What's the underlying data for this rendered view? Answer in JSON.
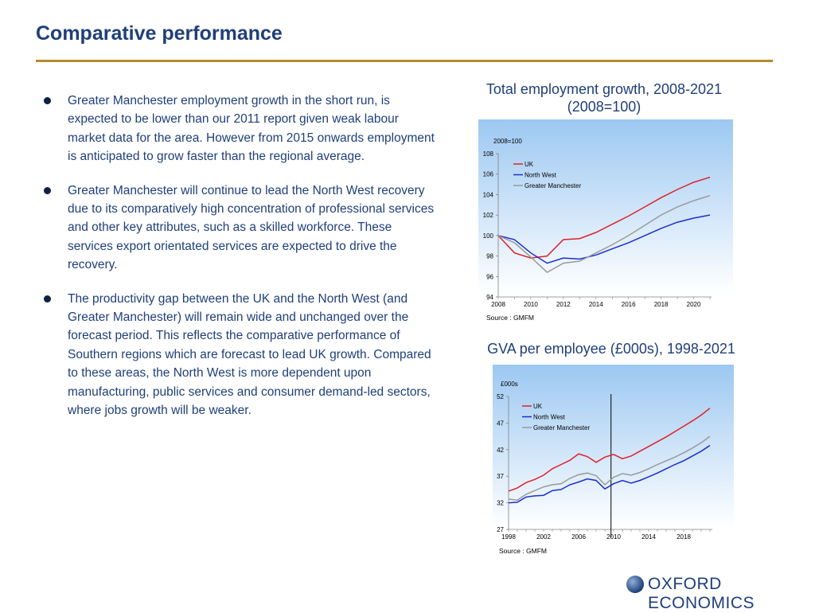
{
  "page": {
    "title": "Comparative performance",
    "bullets": [
      "Greater Manchester employment growth in the short run, is expected to be lower than our 2011 report given weak labour market data for the area. However from 2015 onwards employment is anticipated to grow faster than the regional average.",
      "Greater Manchester will continue to lead the North West recovery due to its comparatively high  concentration of professional services and  other key attributes, such as a skilled workforce.  These services export orientated services are expected to drive the recovery.",
      "The productivity gap between the UK and the North West (and Greater Manchester) will remain wide and unchanged over the forecast period.  This reflects the comparative performance of Southern regions which are forecast to lead UK growth. Compared to these areas, the North West is more dependent upon manufacturing, public services and consumer demand-led sectors,  where jobs growth will  be weaker."
    ],
    "logo_text": "OXFORD ECONOMICS"
  },
  "colors": {
    "uk": "#e0202a",
    "north_west": "#1a2fd0",
    "greater_manchester": "#9a9a9a",
    "title": "#1f3f7a",
    "rule": "#b08d2e"
  },
  "chart_data": [
    {
      "type": "line",
      "title": "Total employment growth, 2008-2021 (2008=100)",
      "title_line1": "Total employment growth, 2008-2021",
      "title_line2": "(2008=100)",
      "unit_label": "2008=100",
      "source": "Source : GMFM",
      "ylim": [
        94,
        108
      ],
      "yticks": [
        "94",
        "96",
        "98",
        "100",
        "102",
        "104",
        "106",
        "108"
      ],
      "xticks": [
        "2008",
        "2010",
        "2012",
        "2014",
        "2016",
        "2018",
        "2020"
      ],
      "x": [
        2008,
        2009,
        2010,
        2011,
        2012,
        2013,
        2014,
        2015,
        2016,
        2017,
        2018,
        2019,
        2020,
        2021
      ],
      "legend_position": "top-left",
      "series": [
        {
          "name": "UK",
          "color": "#e0202a",
          "values": [
            100,
            98.3,
            97.8,
            98,
            99.6,
            99.7,
            100.3,
            101.1,
            101.9,
            102.8,
            103.7,
            104.5,
            105.2,
            105.7
          ]
        },
        {
          "name": "North West",
          "color": "#1a2fd0",
          "values": [
            100,
            99.6,
            98.3,
            97.3,
            97.8,
            97.7,
            98.1,
            98.7,
            99.3,
            100,
            100.7,
            101.3,
            101.7,
            102
          ]
        },
        {
          "name": "Greater Manchester",
          "color": "#9a9a9a",
          "values": [
            100,
            99.3,
            97.9,
            96.4,
            97.3,
            97.5,
            98.3,
            99.1,
            100,
            101,
            102,
            102.8,
            103.4,
            103.9
          ]
        }
      ]
    },
    {
      "type": "line",
      "title": "GVA per employee (£000s), 1998-2021",
      "unit_label": "£000s",
      "source": "Source : GMFM",
      "ylim": [
        27,
        52
      ],
      "yticks": [
        "27",
        "32",
        "37",
        "42",
        "47",
        "52"
      ],
      "xticks": [
        "1998",
        "2002",
        "2006",
        "2010",
        "2014",
        "2018"
      ],
      "x": [
        1998,
        1999,
        2000,
        2001,
        2002,
        2003,
        2004,
        2005,
        2006,
        2007,
        2008,
        2009,
        2010,
        2011,
        2012,
        2013,
        2014,
        2015,
        2016,
        2017,
        2018,
        2019,
        2020,
        2021
      ],
      "forecast_marker_x": 2009.7,
      "legend_position": "top-left",
      "series": [
        {
          "name": "UK",
          "color": "#e0202a",
          "values": [
            34.2,
            34.8,
            35.8,
            36.4,
            37.2,
            38.4,
            39.2,
            40.0,
            41.2,
            40.7,
            39.6,
            40.6,
            41.1,
            40.3,
            40.8,
            41.7,
            42.6,
            43.5,
            44.4,
            45.4,
            46.4,
            47.4,
            48.5,
            49.8
          ]
        },
        {
          "name": "North West",
          "color": "#1a2fd0",
          "values": [
            32.0,
            32.1,
            33.1,
            33.3,
            33.4,
            34.3,
            34.5,
            35.4,
            35.9,
            36.5,
            36.2,
            34.6,
            35.6,
            36.2,
            35.7,
            36.2,
            36.9,
            37.6,
            38.4,
            39.2,
            39.9,
            40.8,
            41.7,
            42.8
          ]
        },
        {
          "name": "Greater Manchester",
          "color": "#9a9a9a",
          "values": [
            32.7,
            32.5,
            33.6,
            34.3,
            35.0,
            35.4,
            35.6,
            36.6,
            37.3,
            37.6,
            37.1,
            35.4,
            36.8,
            37.5,
            37.2,
            37.7,
            38.4,
            39.2,
            39.9,
            40.6,
            41.4,
            42.3,
            43.3,
            44.5
          ]
        }
      ]
    }
  ]
}
